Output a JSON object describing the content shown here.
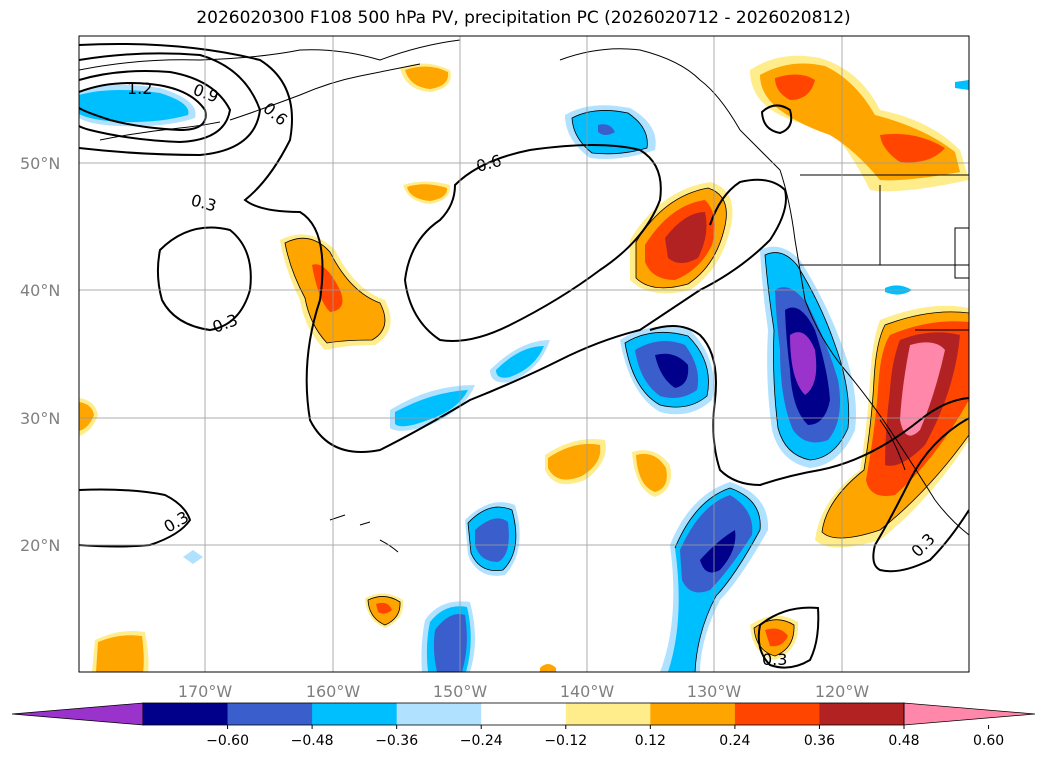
{
  "title": "2026020300 F108 500 hPa PV, precipitation PC (2026020712 - 2026020812)",
  "map": {
    "lat_labels": [
      "50°N",
      "40°N",
      "30°N",
      "20°N"
    ],
    "lon_labels": [
      "170°W",
      "160°W",
      "150°W",
      "140°W",
      "130°W",
      "120°W"
    ],
    "lat_range": [
      10,
      60
    ],
    "lon_range": [
      -180,
      -110
    ],
    "grid": true,
    "contour_labels": [
      "1.2",
      "0.9",
      "0.6",
      "0.3",
      "0.6",
      "0.3",
      "0.3",
      "0.3",
      "0.3"
    ]
  },
  "colorbar": {
    "ticks": [
      "−0.60",
      "−0.48",
      "−0.36",
      "−0.24",
      "−0.12",
      "0.12",
      "0.24",
      "0.36",
      "0.48",
      "0.60"
    ],
    "colors": [
      "#9933cc",
      "#00008b",
      "#3a5fcd",
      "#00bfff",
      "#b0e2ff",
      "#ffffff",
      "#ffec8b",
      "#ffa500",
      "#ff4500",
      "#b22222",
      "#ff88aa"
    ],
    "extend": "both"
  }
}
